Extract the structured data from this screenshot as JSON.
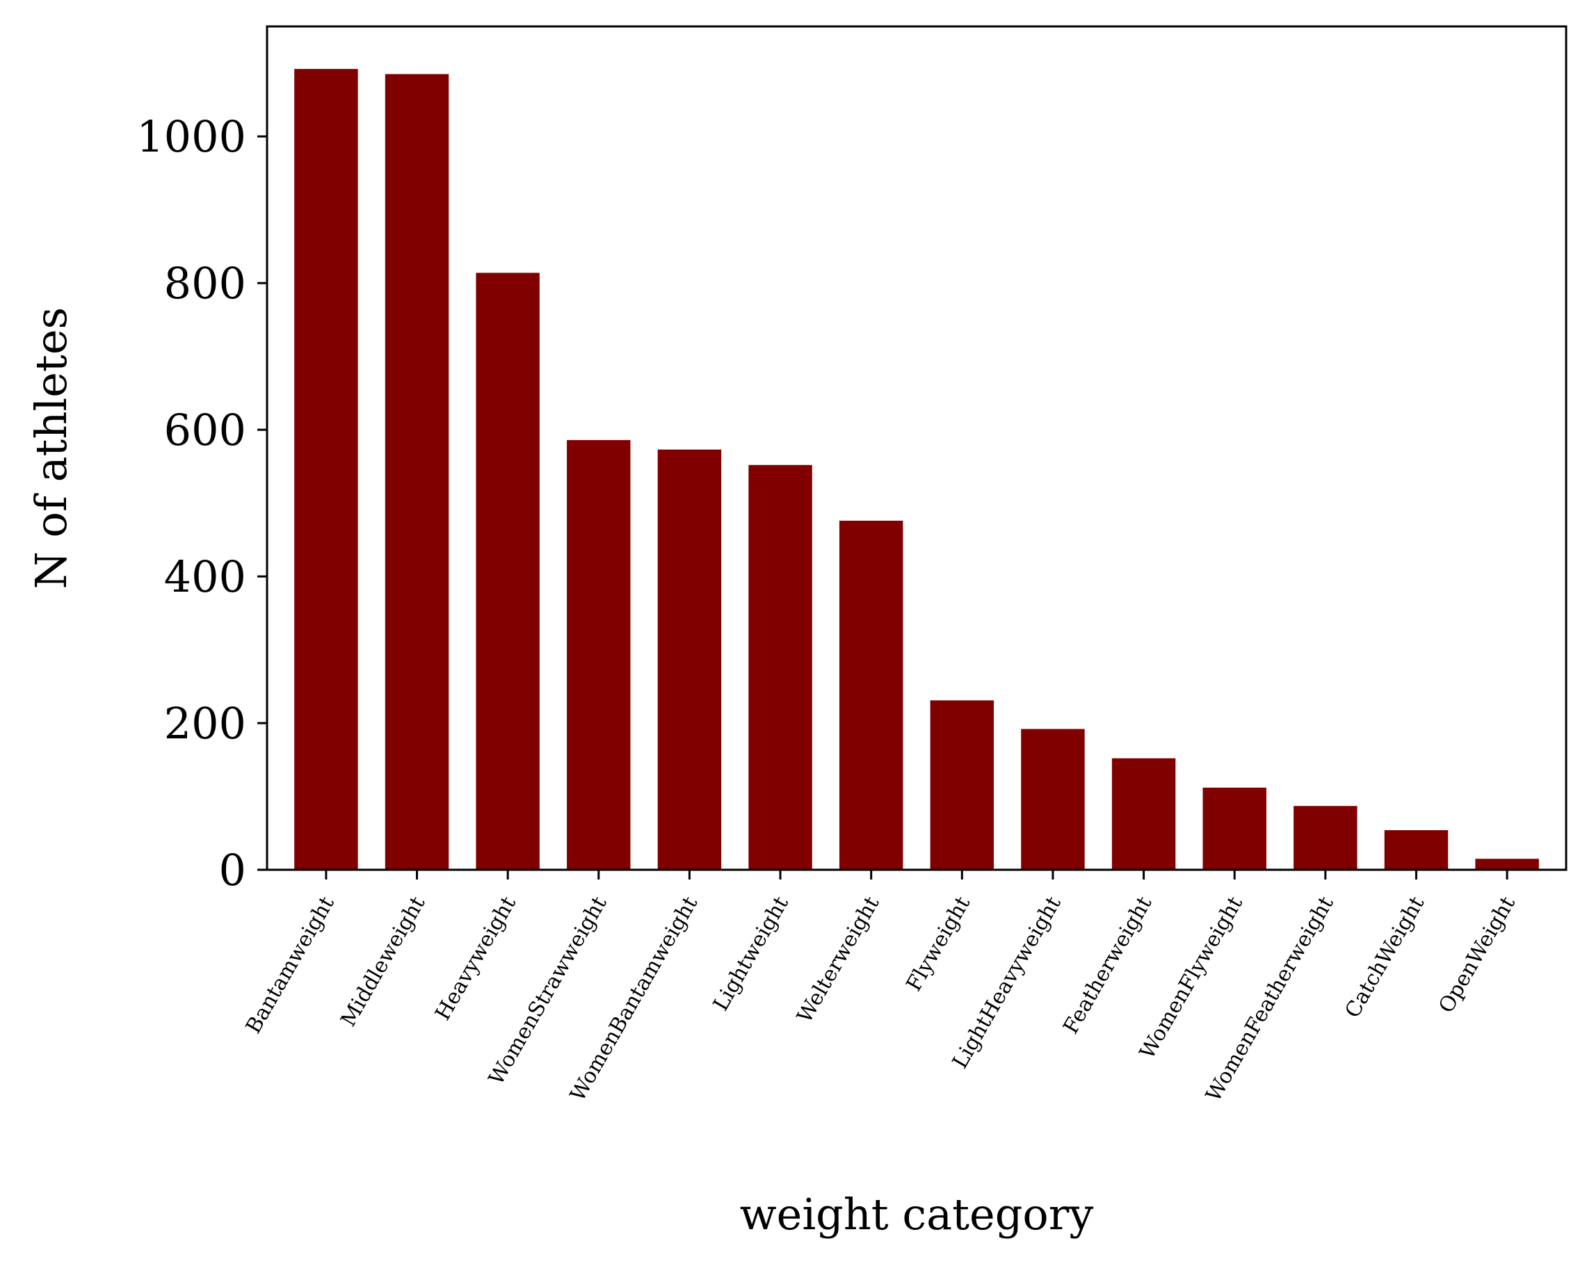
{
  "chart_data": {
    "type": "bar",
    "title": "",
    "xlabel": "weight category",
    "ylabel": "N of athletes",
    "categories": [
      "Bantamweight",
      "Middleweight",
      "Heavyweight",
      "WomenStrawweight",
      "WomenBantamweight",
      "Lightweight",
      "Welterweight",
      "Flyweight",
      "LightHeavyweight",
      "Featherweight",
      "WomenFlyweight",
      "WomenFeatherweight",
      "CatchWeight",
      "OpenWeight"
    ],
    "values": [
      1092,
      1085,
      814,
      586,
      573,
      552,
      476,
      231,
      192,
      152,
      112,
      87,
      54,
      15
    ],
    "ylim": [
      0,
      1150
    ],
    "yticks": [
      0,
      200,
      400,
      600,
      800,
      1000
    ],
    "grid": false,
    "legend": "none",
    "bar_color": "#800000"
  }
}
